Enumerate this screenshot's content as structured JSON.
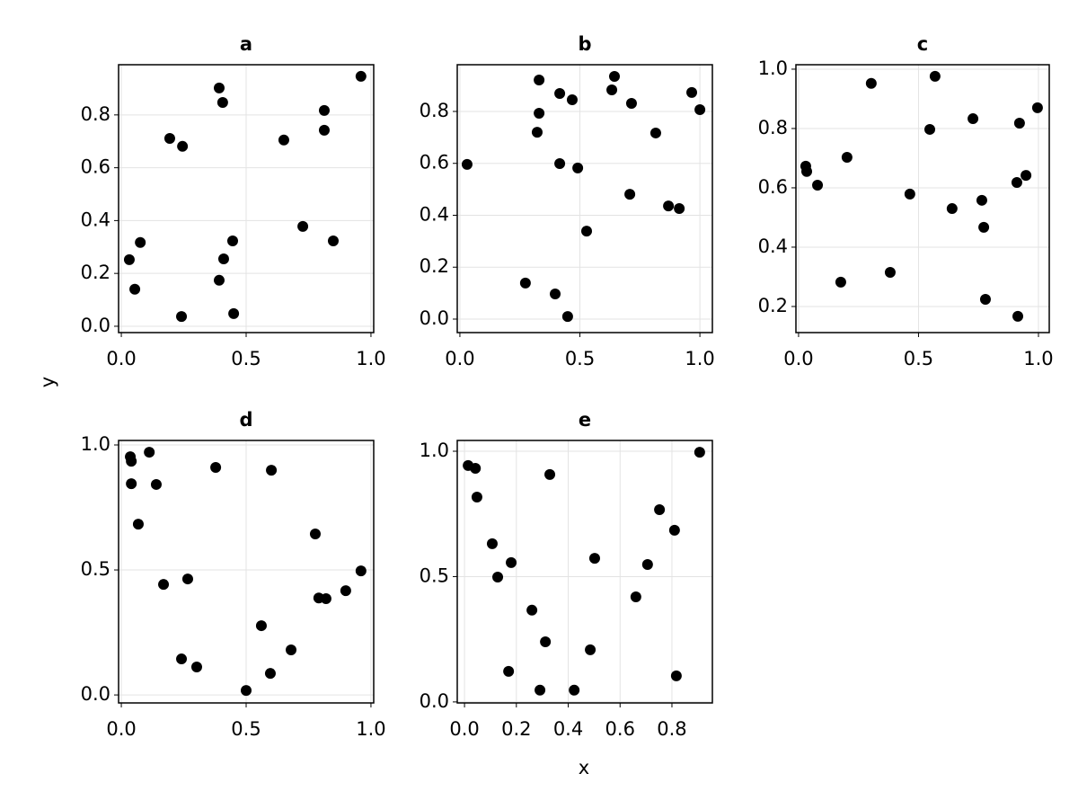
{
  "xlabel": "x",
  "ylabel": "y",
  "chart_data": [
    {
      "type": "scatter",
      "title": "a",
      "color": "#000000",
      "grid": true,
      "x": [
        0.96,
        0.392,
        0.406,
        0.813,
        0.813,
        0.194,
        0.245,
        0.651,
        0.076,
        0.032,
        0.054,
        0.241,
        0.727,
        0.849,
        0.446,
        0.41,
        0.392,
        0.45
      ],
      "y": [
        0.946,
        0.902,
        0.847,
        0.817,
        0.742,
        0.711,
        0.681,
        0.705,
        0.317,
        0.252,
        0.14,
        0.037,
        0.378,
        0.323,
        0.323,
        0.255,
        0.174,
        0.048
      ],
      "xlim": [
        -0.011,
        1.011
      ],
      "ylim": [
        -0.024,
        0.99
      ],
      "xticks": [
        {
          "value": 0,
          "label": "0.0"
        },
        0.5,
        {
          "value": 1,
          "label": "1.0"
        }
      ],
      "yticks": [
        {
          "value": 0,
          "label": "0.0"
        },
        0.2,
        0.4,
        0.6,
        0.8
      ]
    },
    {
      "type": "scatter",
      "title": "b",
      "color": "#000000",
      "grid": true,
      "x": [
        0.03,
        0.33,
        0.416,
        0.468,
        0.33,
        0.322,
        0.633,
        0.644,
        0.715,
        0.966,
        1.0,
        0.816,
        0.416,
        0.491,
        0.708,
        0.869,
        0.914,
        0.528,
        0.273,
        0.397,
        0.449
      ],
      "y": [
        0.596,
        0.921,
        0.869,
        0.845,
        0.793,
        0.72,
        0.883,
        0.935,
        0.831,
        0.873,
        0.807,
        0.717,
        0.599,
        0.582,
        0.481,
        0.436,
        0.426,
        0.339,
        0.139,
        0.097,
        0.01
      ],
      "xlim": [
        -0.011,
        1.052
      ],
      "ylim": [
        -0.052,
        0.98
      ],
      "xticks": [
        {
          "value": 0,
          "label": "0.0"
        },
        0.5,
        {
          "value": 1,
          "label": "1.0"
        }
      ],
      "yticks": [
        {
          "value": 0,
          "label": "0.0"
        },
        0.2,
        0.4,
        0.6,
        0.8
      ]
    },
    {
      "type": "scatter",
      "title": "c",
      "color": "#000000",
      "grid": true,
      "x": [
        0.03,
        0.034,
        0.079,
        0.202,
        0.303,
        0.569,
        0.547,
        0.727,
        0.921,
        0.996,
        0.948,
        0.91,
        0.464,
        0.64,
        0.764,
        0.772,
        0.382,
        0.176,
        0.779,
        0.914
      ],
      "y": [
        0.673,
        0.655,
        0.609,
        0.703,
        0.952,
        0.976,
        0.797,
        0.833,
        0.818,
        0.87,
        0.642,
        0.618,
        0.579,
        0.53,
        0.558,
        0.467,
        0.315,
        0.282,
        0.224,
        0.167
      ],
      "xlim": [
        -0.011,
        1.045
      ],
      "ylim": [
        0.112,
        1.015
      ],
      "xticks": [
        {
          "value": 0,
          "label": "0.0"
        },
        0.5,
        {
          "value": 1,
          "label": "1.0"
        }
      ],
      "yticks": [
        0.2,
        0.4,
        0.6,
        0.8,
        {
          "value": 1,
          "label": "1.0"
        }
      ]
    },
    {
      "type": "scatter",
      "title": "d",
      "color": "#000000",
      "grid": true,
      "x": [
        0.04,
        0.036,
        0.112,
        0.04,
        0.14,
        0.068,
        0.378,
        0.601,
        0.169,
        0.266,
        0.777,
        0.791,
        0.82,
        0.899,
        0.96,
        0.561,
        0.68,
        0.597,
        0.302,
        0.241,
        0.5
      ],
      "y": [
        0.935,
        0.953,
        0.971,
        0.845,
        0.842,
        0.683,
        0.91,
        0.899,
        0.442,
        0.464,
        0.644,
        0.388,
        0.385,
        0.417,
        0.496,
        0.277,
        0.18,
        0.086,
        0.112,
        0.144,
        0.018
      ],
      "xlim": [
        -0.011,
        1.011
      ],
      "ylim": [
        -0.032,
        1.018
      ],
      "xticks": [
        {
          "value": 0,
          "label": "0.0"
        },
        0.5,
        {
          "value": 1,
          "label": "1.0"
        }
      ],
      "yticks": [
        {
          "value": 0,
          "label": "0.0"
        },
        0.5,
        {
          "value": 1,
          "label": "1.0"
        }
      ]
    },
    {
      "type": "scatter",
      "title": "e",
      "color": "#000000",
      "grid": true,
      "x": [
        0.014,
        0.042,
        0.048,
        0.329,
        0.107,
        0.18,
        0.128,
        0.502,
        0.752,
        0.81,
        0.706,
        0.661,
        0.907,
        0.26,
        0.312,
        0.485,
        0.17,
        0.291,
        0.423,
        0.817
      ],
      "y": [
        0.943,
        0.932,
        0.817,
        0.907,
        0.631,
        0.556,
        0.498,
        0.573,
        0.767,
        0.685,
        0.548,
        0.419,
        0.996,
        0.366,
        0.24,
        0.208,
        0.122,
        0.047,
        0.047,
        0.104
      ],
      "xlim": [
        -0.028,
        0.956
      ],
      "ylim": [
        -0.004,
        1.043
      ],
      "xticks": [
        {
          "value": 0,
          "label": "0.0"
        },
        0.2,
        0.4,
        0.6,
        0.8
      ],
      "yticks": [
        {
          "value": 0,
          "label": "0.0"
        },
        0.5,
        {
          "value": 1,
          "label": "1.0"
        }
      ]
    }
  ]
}
